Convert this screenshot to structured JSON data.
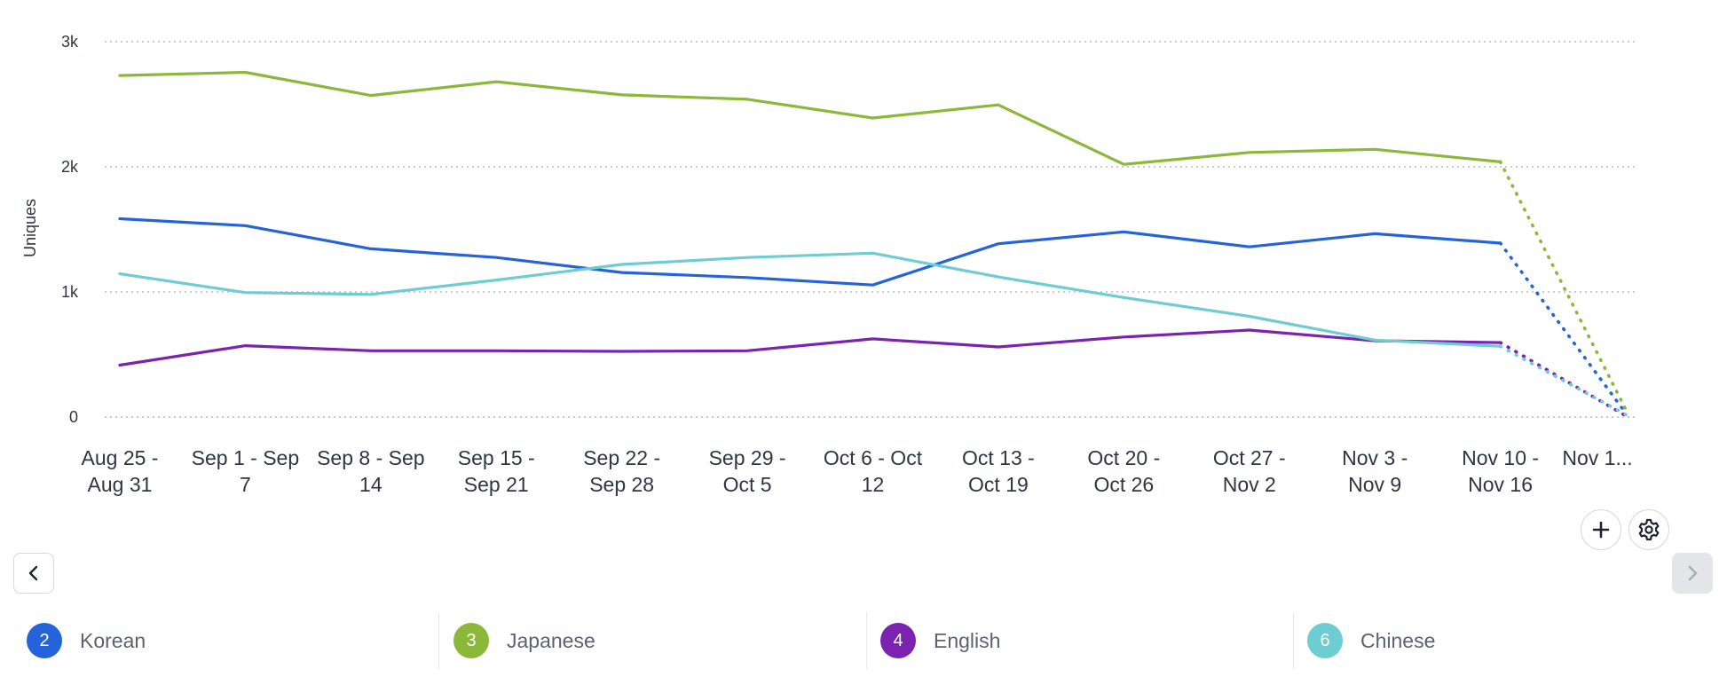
{
  "chart_data": {
    "type": "line",
    "title": "",
    "xlabel": "",
    "ylabel": "Uniques",
    "ylim": [
      0,
      3000
    ],
    "yticks": [
      {
        "value": 0,
        "label": "0"
      },
      {
        "value": 1000,
        "label": "1k"
      },
      {
        "value": 2000,
        "label": "2k"
      },
      {
        "value": 3000,
        "label": "3k"
      }
    ],
    "grid": true,
    "categories": [
      [
        "Aug 25 -",
        "Aug 31"
      ],
      [
        "Sep 1 - Sep",
        "7"
      ],
      [
        "Sep 8 - Sep",
        "14"
      ],
      [
        "Sep 15 -",
        "Sep 21"
      ],
      [
        "Sep 22 -",
        "Sep 28"
      ],
      [
        "Sep 29 -",
        "Oct 5"
      ],
      [
        "Oct 6 - Oct",
        "12"
      ],
      [
        "Oct 13 -",
        "Oct 19"
      ],
      [
        "Oct 20 -",
        "Oct 26"
      ],
      [
        "Oct 27 -",
        "Nov 2"
      ],
      [
        "Nov 3 -",
        "Nov 9"
      ],
      [
        "Nov 10 -",
        "Nov 16"
      ],
      [
        "Nov 1..."
      ]
    ],
    "series": [
      {
        "id": 2,
        "name": "Korean",
        "color": "#2563db",
        "values": [
          1585,
          1530,
          1345,
          1275,
          1155,
          1115,
          1055,
          1385,
          1480,
          1360,
          1465,
          1390,
          30
        ]
      },
      {
        "id": 3,
        "name": "Japanese",
        "color": "#8cb83a",
        "values": [
          2730,
          2755,
          2570,
          2680,
          2575,
          2540,
          2390,
          2495,
          2020,
          2115,
          2140,
          2040,
          60
        ]
      },
      {
        "id": 4,
        "name": "English",
        "color": "#7b22b0",
        "values": [
          415,
          570,
          530,
          530,
          525,
          530,
          625,
          560,
          640,
          695,
          610,
          595,
          10
        ]
      },
      {
        "id": 6,
        "name": "Chinese",
        "color": "#6dcdd2",
        "values": [
          1145,
          995,
          980,
          1095,
          1220,
          1275,
          1310,
          1120,
          955,
          805,
          615,
          565,
          20
        ]
      }
    ],
    "incomplete_last_period": true
  },
  "legend": [
    {
      "number": "2",
      "label": "Korean",
      "color": "#2563db"
    },
    {
      "number": "3",
      "label": "Japanese",
      "color": "#8cb83a"
    },
    {
      "number": "4",
      "label": "English",
      "color": "#7b22b0"
    },
    {
      "number": "6",
      "label": "Chinese",
      "color": "#6dcdd2"
    }
  ],
  "controls": {
    "add_icon": "plus-icon",
    "settings_icon": "gear-icon",
    "prev_icon": "chevron-left-icon",
    "next_icon": "chevron-right-icon"
  }
}
